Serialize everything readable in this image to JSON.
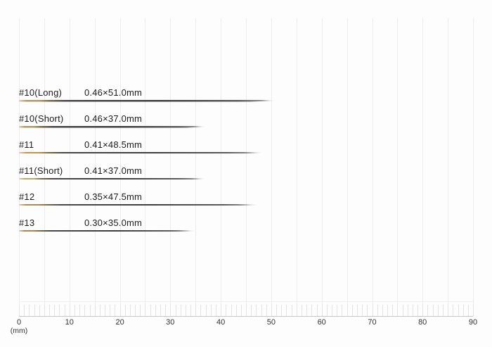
{
  "chart_data": {
    "type": "bar",
    "orientation": "horizontal",
    "title": "",
    "subtitle": "",
    "categories": [
      "#10(Long)",
      "#10(Short)",
      "#11",
      "#11(Short)",
      "#12",
      "#13"
    ],
    "values": [
      51.0,
      37.0,
      48.5,
      37.0,
      47.5,
      35.0
    ],
    "needles": [
      {
        "label": "#10(Long)",
        "spec": "0.46×51.0mm",
        "diameter_mm": 0.46,
        "length_mm": 51.0,
        "eye_color": "#b49a62"
      },
      {
        "label": "#10(Short)",
        "spec": "0.46×37.0mm",
        "diameter_mm": 0.46,
        "length_mm": 37.0,
        "eye_color": "#b49a62"
      },
      {
        "label": "#11",
        "spec": "0.41×48.5mm",
        "diameter_mm": 0.41,
        "length_mm": 48.5,
        "eye_color": "#b69b4e"
      },
      {
        "label": "#11(Short)",
        "spec": "0.41×37.0mm",
        "diameter_mm": 0.41,
        "length_mm": 37.0,
        "eye_color": "#c2a85e"
      },
      {
        "label": "#12",
        "spec": "0.35×47.5mm",
        "diameter_mm": 0.35,
        "length_mm": 47.5,
        "eye_color": "#a98a58"
      },
      {
        "label": "#13",
        "spec": "0.30×35.0mm",
        "diameter_mm": 0.3,
        "length_mm": 35.0,
        "eye_color": "#bf7f48"
      }
    ],
    "x_axis": {
      "min": 0,
      "max": 90,
      "major_tick_step_mm": 10,
      "gridline_step_mm": 5,
      "minor_tick_step_mm": 1,
      "tick_labels": [
        "0",
        "10",
        "20",
        "30",
        "40",
        "50",
        "60",
        "70",
        "80",
        "90"
      ],
      "unit_label": "(mm)"
    },
    "xlabel": "(mm)",
    "ylabel": "",
    "grid": true,
    "legend": false
  },
  "colors": {
    "background": "#fdfdfd",
    "gridline": "#ececec",
    "minor_tick": "#e3e3e3",
    "ruler_baseline": "#c9c9c9",
    "ruler_top_line": "#f0f0f0",
    "label_text": "#1c1c1c",
    "axis_text": "#333333",
    "needle_body": "#474747",
    "needle_tip": "#8f8f8f"
  }
}
